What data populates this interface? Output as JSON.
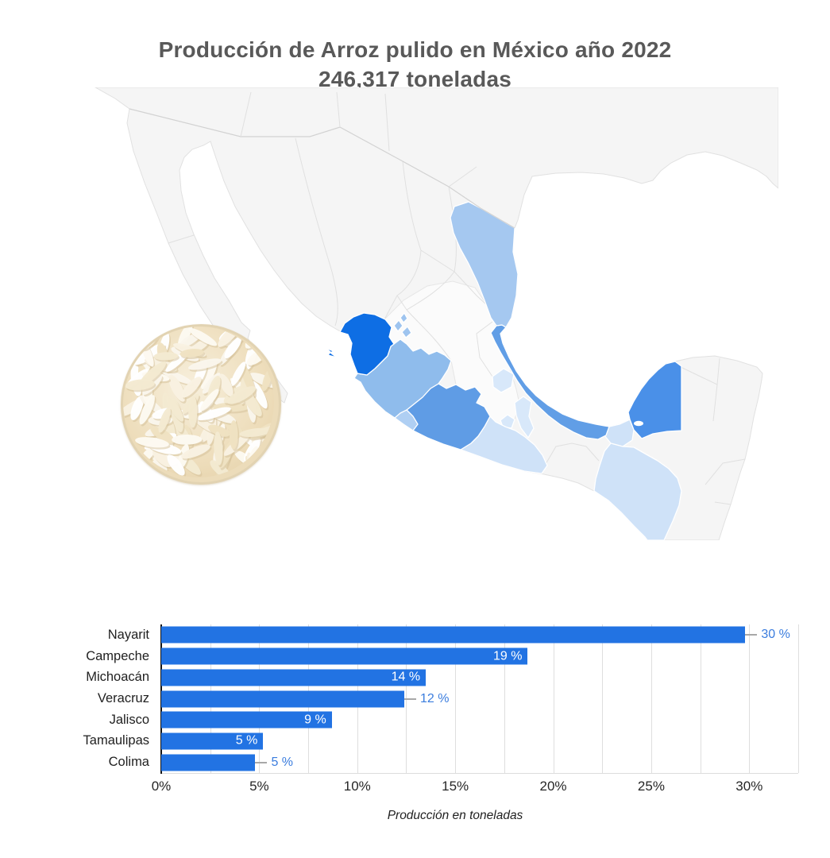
{
  "title": {
    "line1": "Producción de Arroz pulido en México año 2022",
    "line2": "246,317 toneladas"
  },
  "map": {
    "description": "choropleth-map-of-mexico-rice-production",
    "ocean_color": "#ffffff",
    "land_color": "#f5f5f5",
    "land_alt_color": "#fbfbfb",
    "border_color": "#e1e1e1",
    "states": [
      {
        "id": "nayarit",
        "name": "Nayarit",
        "color": "#0e6ee4",
        "shade": "darkest"
      },
      {
        "id": "campeche",
        "name": "Campeche",
        "color": "#4a90e8",
        "shade": "dark"
      },
      {
        "id": "michoacan",
        "name": "Michoacán",
        "color": "#5f9ce5",
        "shade": "medium"
      },
      {
        "id": "veracruz",
        "name": "Veracruz",
        "color": "#619ee6",
        "shade": "medium"
      },
      {
        "id": "jalisco",
        "name": "Jalisco",
        "color": "#8fbcec",
        "shade": "medium-light"
      },
      {
        "id": "tamaulipas",
        "name": "Tamaulipas",
        "color": "#a5c8f0",
        "shade": "light"
      },
      {
        "id": "colima",
        "name": "Colima",
        "color": "#afcff3",
        "shade": "light"
      },
      {
        "id": "guerrero",
        "name": "Guerrero",
        "color": "#cfe2f8",
        "shade": "lightest"
      },
      {
        "id": "tabasco",
        "name": "Tabasco",
        "color": "#cfe2f8",
        "shade": "lightest"
      },
      {
        "id": "chiapas",
        "name": "Chiapas",
        "color": "#cfe2f8",
        "shade": "lightest"
      },
      {
        "id": "morelos",
        "name": "Morelos",
        "color": "#d8e8fa",
        "shade": "lightest"
      },
      {
        "id": "puebla",
        "name": "Puebla",
        "color": "#d8e8fa",
        "shade": "lightest"
      },
      {
        "id": "hidalgo",
        "name": "Hidalgo",
        "color": "#d8e8fa",
        "shade": "lightest"
      },
      {
        "id": "fingers",
        "name": "Nayarit-Jalisco-border",
        "color": "#9ec4ef",
        "shade": "light"
      },
      {
        "id": "islas",
        "name": "Islas-Marías",
        "color": "#0e6ee4",
        "shade": "darkest"
      }
    ]
  },
  "rice_image": {
    "alt": "bowl-of-white-rice-grains",
    "border_color": "#e2d3b2",
    "background_color": "#ecdcba",
    "grain_colors": [
      "#ffffff",
      "#fdfaf2",
      "#f9f2e2",
      "#f4ead2",
      "#efe2c2",
      "#faf6ec"
    ]
  },
  "chart_data": {
    "type": "bar",
    "orientation": "horizontal",
    "categories": [
      "Nayarit",
      "Campeche",
      "Michoacán",
      "Veracruz",
      "Jalisco",
      "Tamaulipas",
      "Colima"
    ],
    "values": [
      29.8,
      18.7,
      13.5,
      12.4,
      8.7,
      5.2,
      4.8
    ],
    "value_labels": [
      "30 %",
      "19 %",
      "14 %",
      "12 %",
      "9 %",
      "5 %",
      "5 %"
    ],
    "label_positions": [
      "outside",
      "inside",
      "inside",
      "outside",
      "inside",
      "inside",
      "outside"
    ],
    "x_tick_values": [
      0,
      5,
      10,
      15,
      20,
      25,
      30
    ],
    "x_tick_labels": [
      "0%",
      "5%",
      "10%",
      "15%",
      "20%",
      "25%",
      "30%"
    ],
    "xlim": [
      0,
      32.5
    ],
    "gridline_step": 2.5,
    "grid": true,
    "xlabel": "Producción en toneladas",
    "bar_color": "#2273e3",
    "inside_label_color": "#ffffff",
    "outside_label_color": "#3b7dde",
    "leader_line_color": "#a8a8a8"
  }
}
